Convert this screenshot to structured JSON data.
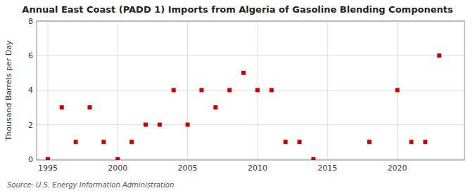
{
  "chart_data": {
    "type": "scatter",
    "title": "Annual East Coast (PADD 1) Imports from Algeria of Gasoline Blending Components",
    "y_label": "Thousand Barrels per Day",
    "source": "Source: U.S. Energy Information Administration",
    "x": [
      1995,
      1996,
      1997,
      1998,
      1999,
      2000,
      2001,
      2002,
      2003,
      2004,
      2005,
      2006,
      2007,
      2008,
      2009,
      2010,
      2011,
      2012,
      2013,
      2014,
      2018,
      2020,
      2021,
      2022,
      2023
    ],
    "values": [
      0,
      3,
      1,
      3,
      1,
      0,
      1,
      2,
      2,
      4,
      2,
      4,
      3,
      4,
      5,
      4,
      4,
      1,
      1,
      0,
      1,
      4,
      1,
      1,
      6
    ],
    "color": "#cc0000",
    "marker": "square",
    "xlim": [
      1994.2,
      2024.8
    ],
    "ylim": [
      -0.05,
      8
    ],
    "xticks": [
      1995,
      2000,
      2005,
      2010,
      2015,
      2020
    ],
    "yticks": [
      0,
      2,
      4,
      6,
      8
    ],
    "grid": true
  }
}
